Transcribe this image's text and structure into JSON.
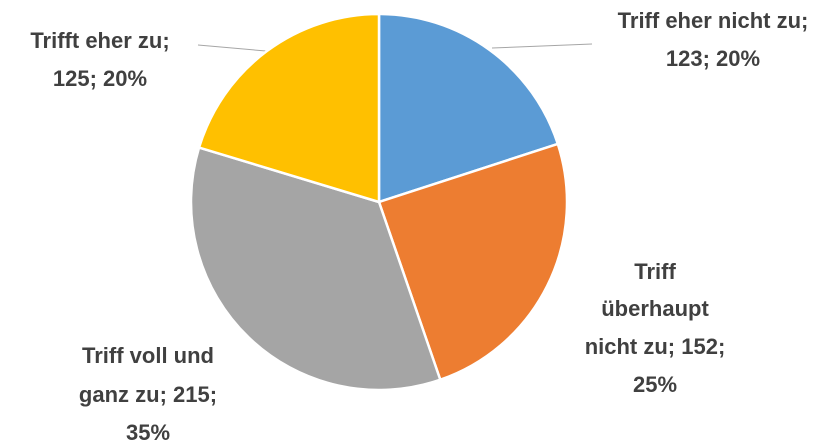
{
  "chart_data": {
    "type": "pie",
    "values": [
      123,
      152,
      215,
      125
    ],
    "value_labels": [
      "Triff eher nicht zu; 123; 20%",
      "Triff überhaupt nicht zu; 152; 25%",
      "Triff voll und ganz zu; 215; 35%",
      "Trifft eher zu; 125; 20%"
    ],
    "colors": [
      "#5b9bd5",
      "#ed7d31",
      "#a5a5a5",
      "#ffc000"
    ]
  }
}
